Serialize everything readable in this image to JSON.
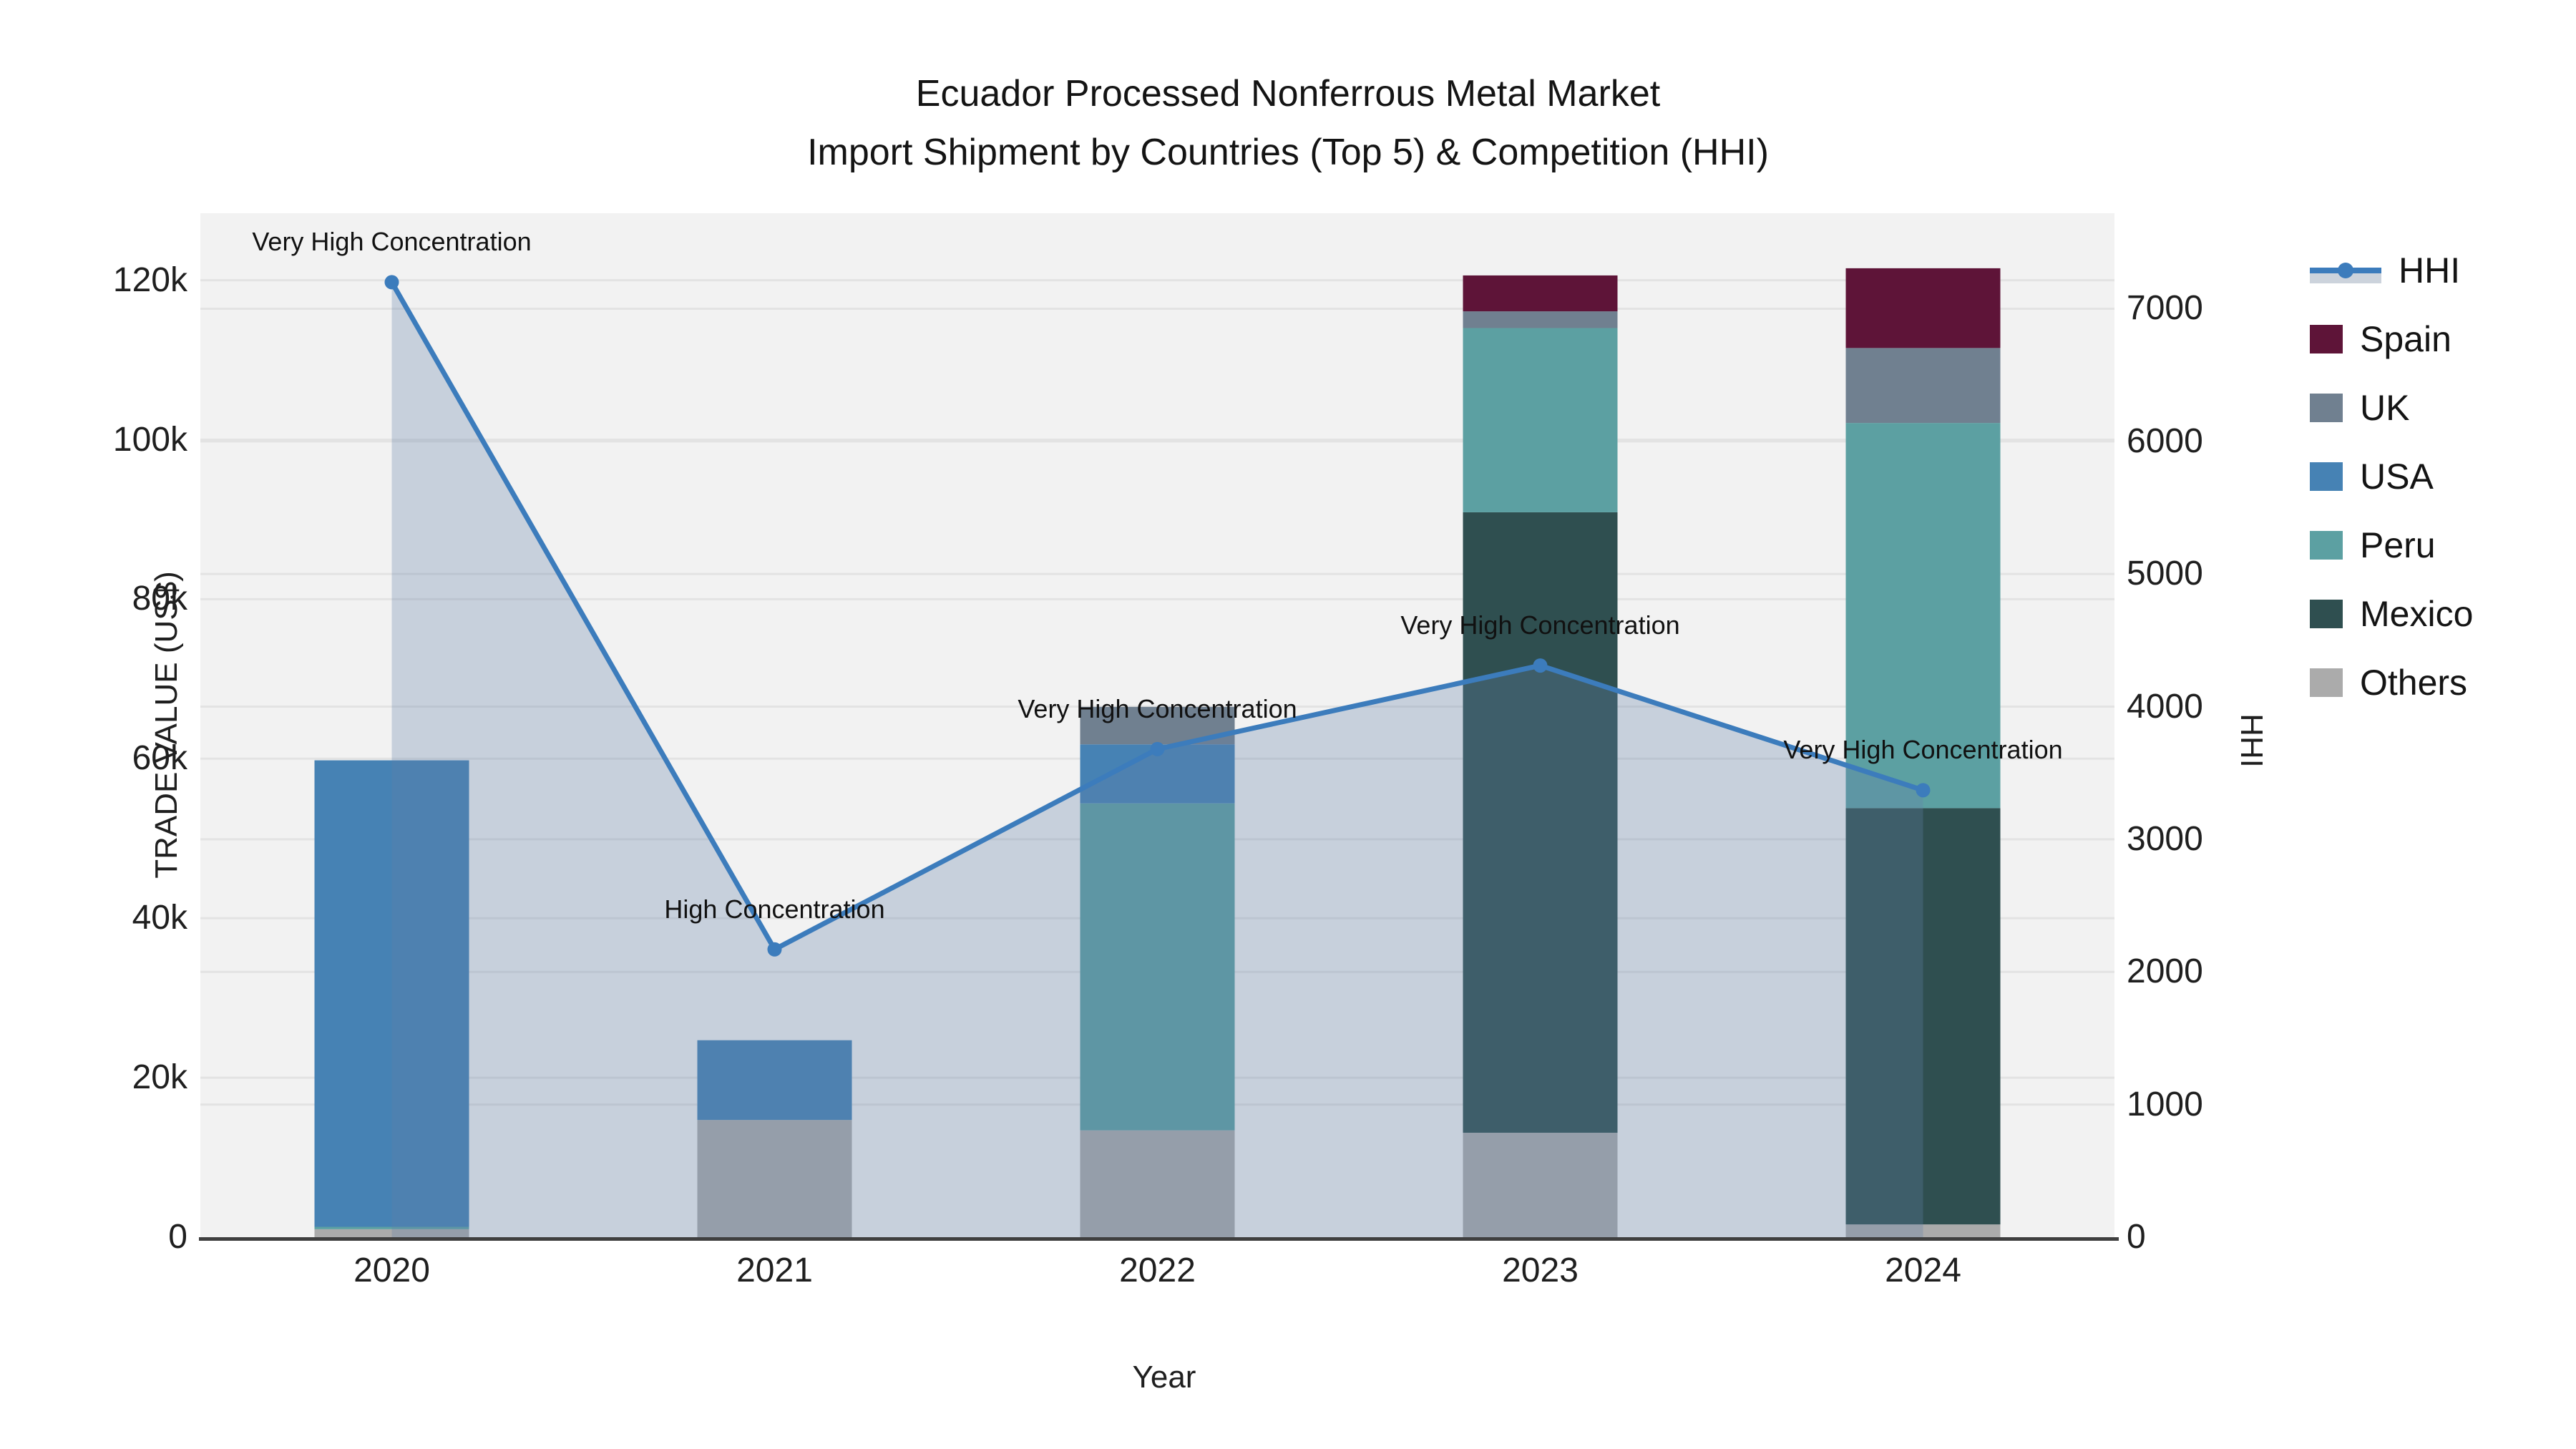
{
  "title": {
    "line1": "Ecuador Processed Nonferrous Metal Market",
    "line2": "Import Shipment by Countries (Top 5) & Competition (HHI)"
  },
  "chart_data": {
    "type": "bar+line",
    "title": "Ecuador Processed Nonferrous Metal Market Import Shipment by Countries (Top 5) & Competition (HHI)",
    "xlabel": "Year",
    "ylabel_left": "TRADE VALUE (US$)",
    "ylabel_right": "HHI",
    "categories": [
      "2020",
      "2021",
      "2022",
      "2023",
      "2024"
    ],
    "bar_stack_order_note": "bottom to top",
    "bar_series": [
      {
        "name": "Others",
        "color": "#ABABAB",
        "values": [
          1000,
          14700,
          13400,
          13100,
          1600
        ]
      },
      {
        "name": "Mexico",
        "color": "#2F4F50",
        "values": [
          0,
          0,
          0,
          77800,
          52200
        ]
      },
      {
        "name": "Peru",
        "color": "#5CA0A2",
        "values": [
          300,
          0,
          41000,
          23100,
          48300
        ]
      },
      {
        "name": "USA",
        "color": "#4682B4",
        "values": [
          58500,
          10000,
          7400,
          0,
          0
        ]
      },
      {
        "name": "UK",
        "color": "#708090",
        "values": [
          0,
          0,
          4700,
          2100,
          9400
        ]
      },
      {
        "name": "Spain",
        "color": "#5E1438",
        "values": [
          0,
          0,
          0,
          4500,
          10000
        ]
      }
    ],
    "line_series": {
      "name": "HHI",
      "color": "#3C7CBC",
      "area_fill": "rgba(100,130,170,0.30)",
      "values": [
        7200,
        2170,
        3680,
        4310,
        3370
      ]
    },
    "annotations": [
      "Very High Concentration",
      "High Concentration",
      "Very High Concentration",
      "Very High Concentration",
      "Very High Concentration"
    ],
    "left_axis": {
      "range": [
        0,
        128400
      ],
      "ticks": [
        {
          "v": 0,
          "label": "0"
        },
        {
          "v": 20000,
          "label": "20k"
        },
        {
          "v": 40000,
          "label": "40k"
        },
        {
          "v": 60000,
          "label": "60k"
        },
        {
          "v": 80000,
          "label": "80k"
        },
        {
          "v": 100000,
          "label": "100k"
        },
        {
          "v": 120000,
          "label": "120k"
        }
      ]
    },
    "right_axis": {
      "range": [
        0,
        7720
      ],
      "ticks": [
        {
          "v": 0,
          "label": "0"
        },
        {
          "v": 1000,
          "label": "1000"
        },
        {
          "v": 2000,
          "label": "2000"
        },
        {
          "v": 3000,
          "label": "3000"
        },
        {
          "v": 4000,
          "label": "4000"
        },
        {
          "v": 5000,
          "label": "5000"
        },
        {
          "v": 6000,
          "label": "6000"
        },
        {
          "v": 7000,
          "label": "7000"
        }
      ]
    },
    "legend": [
      "HHI",
      "Spain",
      "UK",
      "USA",
      "Peru",
      "Mexico",
      "Others"
    ],
    "style": {
      "plot_bg": "#f2f2f2",
      "grid_color": "#e3e3e3",
      "axis_line_color": "#3f3f3f"
    }
  }
}
